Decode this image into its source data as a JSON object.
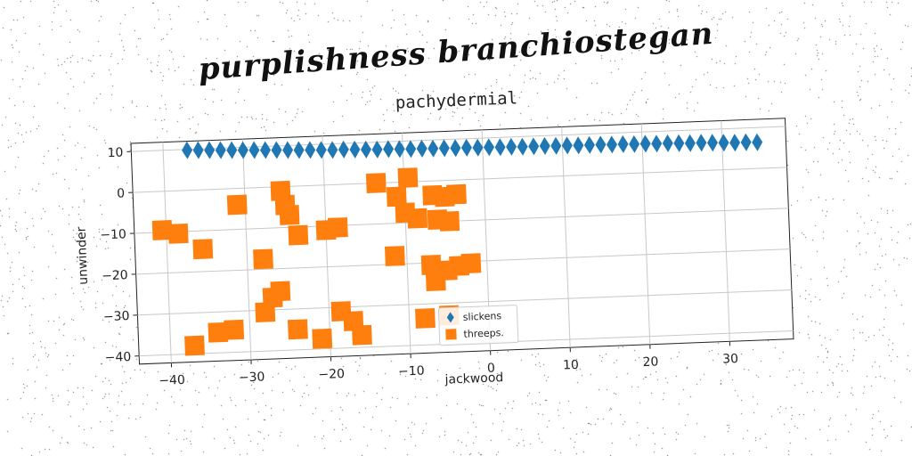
{
  "figure": {
    "supertitle": "purplishness branchiostegan",
    "background": "#ffffff"
  },
  "chart_data": {
    "type": "scatter",
    "title": "pachydermial",
    "xlabel": "jackwood",
    "ylabel": "unwinder",
    "xlim": [
      -44,
      38
    ],
    "ylim": [
      -42,
      12
    ],
    "xticks": [
      -40,
      -30,
      -20,
      -10,
      0,
      10,
      20,
      30
    ],
    "yticks": [
      -40,
      -30,
      -20,
      -10,
      0,
      10
    ],
    "xtick_labels": [
      "−40",
      "−30",
      "−20",
      "−10",
      "0",
      "10",
      "20",
      "30"
    ],
    "ytick_labels": [
      "−40",
      "−30",
      "−20",
      "−10",
      "0",
      "10"
    ],
    "grid": true,
    "legend": "lower center",
    "series": [
      {
        "name": "slickens",
        "marker": "diamond",
        "color": "#1f77b4",
        "points": [
          [
            -37.0,
            9.8
          ],
          [
            -35.6,
            9.7
          ],
          [
            -34.2,
            9.6
          ],
          [
            -32.8,
            9.5
          ],
          [
            -31.4,
            9.4
          ],
          [
            -30.0,
            9.3
          ],
          [
            -28.6,
            9.2
          ],
          [
            -27.2,
            9.1
          ],
          [
            -25.8,
            9.0
          ],
          [
            -24.4,
            8.9
          ],
          [
            -23.0,
            8.8
          ],
          [
            -21.6,
            8.7
          ],
          [
            -20.2,
            8.6
          ],
          [
            -18.8,
            8.5
          ],
          [
            -17.4,
            8.5
          ],
          [
            -16.0,
            8.4
          ],
          [
            -14.6,
            8.3
          ],
          [
            -13.2,
            8.2
          ],
          [
            -11.8,
            8.2
          ],
          [
            -10.4,
            8.1
          ],
          [
            -9.0,
            8.0
          ],
          [
            -7.6,
            8.0
          ],
          [
            -6.2,
            7.9
          ],
          [
            -4.8,
            7.9
          ],
          [
            -3.4,
            7.8
          ],
          [
            -2.0,
            7.8
          ],
          [
            -0.6,
            7.7
          ],
          [
            0.8,
            7.7
          ],
          [
            2.2,
            7.6
          ],
          [
            3.6,
            7.6
          ],
          [
            5.0,
            7.5
          ],
          [
            6.4,
            7.5
          ],
          [
            7.8,
            7.5
          ],
          [
            9.2,
            7.4
          ],
          [
            10.6,
            7.4
          ],
          [
            12.0,
            7.3
          ],
          [
            13.4,
            7.3
          ],
          [
            14.8,
            7.3
          ],
          [
            16.2,
            7.2
          ],
          [
            17.6,
            7.2
          ],
          [
            19.0,
            7.1
          ],
          [
            20.4,
            7.1
          ],
          [
            21.8,
            7.0
          ],
          [
            23.2,
            7.0
          ],
          [
            24.6,
            6.9
          ],
          [
            26.0,
            6.8
          ],
          [
            27.4,
            6.8
          ],
          [
            28.8,
            6.7
          ],
          [
            30.2,
            6.6
          ],
          [
            31.6,
            6.5
          ],
          [
            33.0,
            6.5
          ],
          [
            34.4,
            6.4
          ]
        ]
      },
      {
        "name": "threeps.",
        "marker": "square",
        "color": "#ff7f0e",
        "points": [
          [
            -40.5,
            -9.5
          ],
          [
            -38.5,
            -10.5
          ],
          [
            -35.5,
            -14.5
          ],
          [
            -31.0,
            -4.0
          ],
          [
            -28.0,
            -17.5
          ],
          [
            -25.5,
            -1.0
          ],
          [
            -25.0,
            -4.5
          ],
          [
            -24.5,
            -7.0
          ],
          [
            -26.0,
            -25.5
          ],
          [
            -23.5,
            -12.0
          ],
          [
            -20.0,
            -11.0
          ],
          [
            -18.5,
            -10.5
          ],
          [
            -13.5,
            0.0
          ],
          [
            -11.0,
            -3.5
          ],
          [
            -9.5,
            1.0
          ],
          [
            -10.0,
            -7.5
          ],
          [
            -8.5,
            -9.0
          ],
          [
            -6.5,
            -3.5
          ],
          [
            -6.0,
            -9.5
          ],
          [
            -5.0,
            -4.0
          ],
          [
            -4.5,
            -10.0
          ],
          [
            -3.5,
            -3.5
          ],
          [
            -11.5,
            -18.0
          ],
          [
            -7.0,
            -20.5
          ],
          [
            -6.5,
            -24.5
          ],
          [
            -5.0,
            -22.0
          ],
          [
            -3.5,
            -21.0
          ],
          [
            -2.0,
            -20.5
          ],
          [
            -5.0,
            -33.0
          ],
          [
            -8.0,
            -33.5
          ],
          [
            -27.0,
            -27.0
          ],
          [
            -28.0,
            -30.5
          ],
          [
            -32.0,
            -34.5
          ],
          [
            -34.0,
            -35.0
          ],
          [
            -37.0,
            -38.0
          ],
          [
            -24.0,
            -35.0
          ],
          [
            -21.0,
            -37.5
          ],
          [
            -18.5,
            -31.0
          ],
          [
            -17.0,
            -33.5
          ],
          [
            -16.0,
            -37.0
          ]
        ]
      }
    ]
  }
}
